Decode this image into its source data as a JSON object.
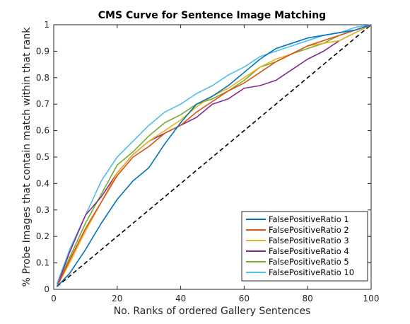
{
  "chart_data": {
    "type": "line",
    "title": "CMS Curve for Sentence Image Matching",
    "xlabel": "No. Ranks of ordered Gallery Sentences",
    "ylabel": "% Probe Images that contain match within that rank",
    "xlim": [
      0,
      100
    ],
    "ylim": [
      0,
      1
    ],
    "xticks": [
      "0",
      "20",
      "40",
      "60",
      "80",
      "100"
    ],
    "yticks": [
      "0",
      "0.1",
      "0.2",
      "0.3",
      "0.4",
      "0.5",
      "0.6",
      "0.7",
      "0.8",
      "0.9",
      "1"
    ],
    "grid": false,
    "legend_position": "bottom-right",
    "x": [
      1,
      5,
      10,
      15,
      20,
      25,
      30,
      35,
      40,
      45,
      50,
      55,
      60,
      65,
      70,
      75,
      80,
      85,
      90,
      95,
      100
    ],
    "series": [
      {
        "name": "FalsePositiveRatio 1",
        "color": "#0072BD",
        "values": [
          0.01,
          0.06,
          0.15,
          0.25,
          0.34,
          0.41,
          0.46,
          0.55,
          0.63,
          0.7,
          0.73,
          0.77,
          0.82,
          0.87,
          0.91,
          0.93,
          0.95,
          0.96,
          0.97,
          0.98,
          1.0
        ]
      },
      {
        "name": "FalsePositiveRatio 2",
        "color": "#D95319",
        "values": [
          0.01,
          0.11,
          0.23,
          0.33,
          0.43,
          0.5,
          0.54,
          0.59,
          0.62,
          0.67,
          0.71,
          0.75,
          0.78,
          0.82,
          0.86,
          0.89,
          0.92,
          0.94,
          0.96,
          0.98,
          1.0
        ]
      },
      {
        "name": "FalsePositiveRatio 3",
        "color": "#EDB120",
        "values": [
          0.01,
          0.1,
          0.22,
          0.33,
          0.44,
          0.51,
          0.56,
          0.6,
          0.64,
          0.69,
          0.73,
          0.76,
          0.8,
          0.84,
          0.87,
          0.89,
          0.92,
          0.93,
          0.94,
          0.97,
          1.0
        ]
      },
      {
        "name": "FalsePositiveRatio 4",
        "color": "#7E2F8E",
        "values": [
          0.01,
          0.14,
          0.28,
          0.35,
          0.44,
          0.51,
          0.56,
          0.59,
          0.62,
          0.65,
          0.7,
          0.72,
          0.76,
          0.77,
          0.79,
          0.83,
          0.87,
          0.9,
          0.94,
          0.97,
          1.0
        ]
      },
      {
        "name": "FalsePositiveRatio 5",
        "color": "#77AC30",
        "values": [
          0.01,
          0.12,
          0.25,
          0.36,
          0.47,
          0.52,
          0.58,
          0.63,
          0.66,
          0.7,
          0.72,
          0.75,
          0.79,
          0.84,
          0.86,
          0.89,
          0.91,
          0.93,
          0.96,
          0.98,
          1.0
        ]
      },
      {
        "name": "FalsePositiveRatio 10",
        "color": "#4DBEEE",
        "values": [
          0.02,
          0.15,
          0.28,
          0.41,
          0.5,
          0.56,
          0.62,
          0.67,
          0.7,
          0.74,
          0.77,
          0.81,
          0.84,
          0.88,
          0.9,
          0.92,
          0.94,
          0.96,
          0.97,
          0.99,
          1.0
        ]
      },
      {
        "name": "",
        "color": "#000000",
        "dashed": true,
        "values": [
          0.01,
          0.05,
          0.1,
          0.15,
          0.2,
          0.25,
          0.3,
          0.35,
          0.4,
          0.45,
          0.5,
          0.55,
          0.6,
          0.65,
          0.7,
          0.75,
          0.8,
          0.85,
          0.9,
          0.95,
          1.0
        ]
      }
    ]
  }
}
